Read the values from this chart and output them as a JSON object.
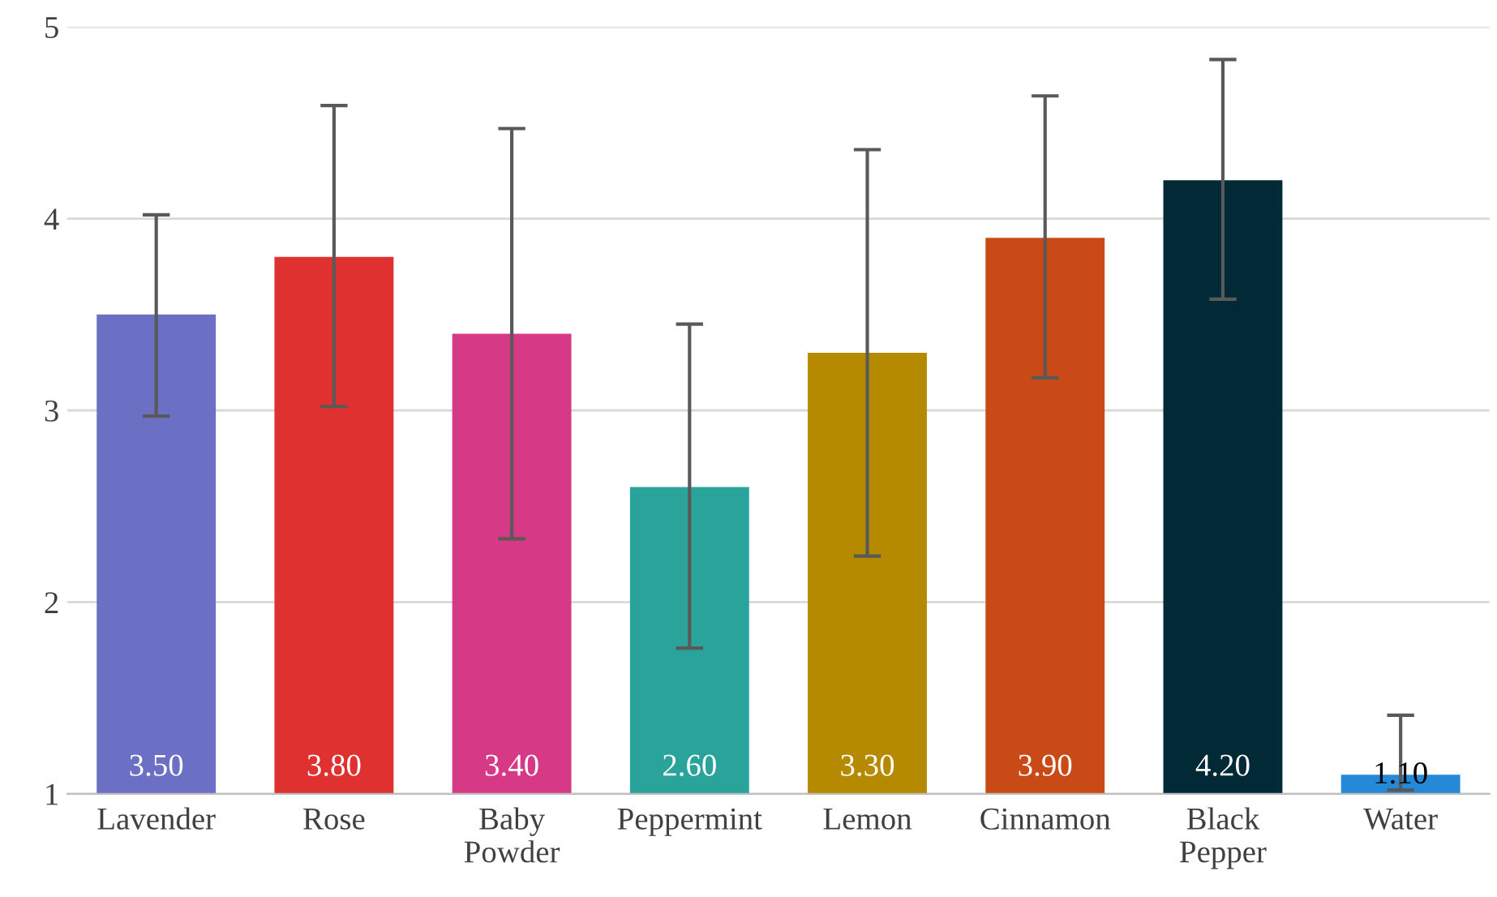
{
  "chart_data": {
    "type": "bar",
    "categories": [
      "Lavender",
      "Rose",
      "Baby\nPowder",
      "Peppermint",
      "Lemon",
      "Cinnamon",
      "Black\nPepper",
      "Water"
    ],
    "values": [
      3.5,
      3.8,
      3.4,
      2.6,
      3.3,
      3.9,
      4.2,
      1.1
    ],
    "colors": [
      "#6c70c4",
      "#e03131",
      "#d63a87",
      "#2aa39a",
      "#b68a00",
      "#c94a17",
      "#022a36",
      "#2589d8"
    ],
    "errors": [
      [
        2.97,
        4.02
      ],
      [
        3.02,
        4.59
      ],
      [
        2.33,
        4.47
      ],
      [
        1.76,
        3.45
      ],
      [
        2.24,
        4.36
      ],
      [
        3.17,
        4.64
      ],
      [
        3.58,
        4.83
      ],
      [
        1.02,
        1.41
      ]
    ],
    "value_labels": [
      "3.50",
      "3.80",
      "3.40",
      "2.60",
      "3.30",
      "3.90",
      "4.20",
      "1.10"
    ],
    "ylim": [
      1,
      5
    ],
    "yticks": [
      1,
      2,
      3,
      4,
      5
    ],
    "grid": "y",
    "legend": false
  }
}
